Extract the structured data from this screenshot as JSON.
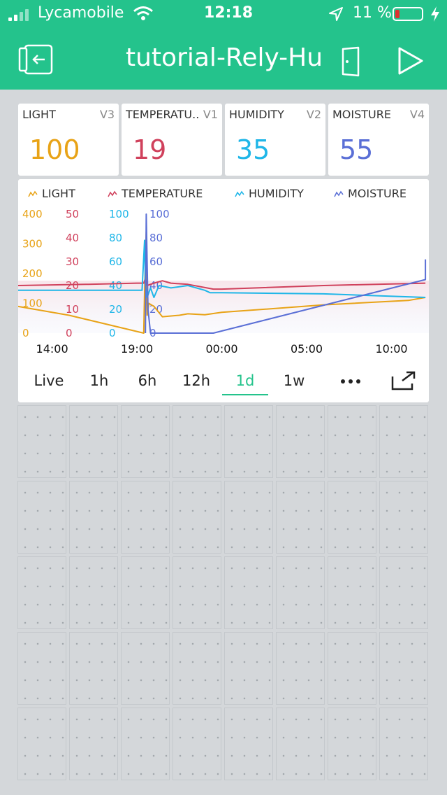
{
  "status_bar": {
    "carrier": "Lycamobile",
    "time": "12:18",
    "battery_percent": "11 %"
  },
  "header": {
    "title": "tutorial-Rely-Hu",
    "back_icon": "exit-icon",
    "device_icon": "door-icon",
    "play_icon": "play-icon"
  },
  "value_displays": [
    {
      "label": "LIGHT",
      "pin": "V3",
      "value": "100",
      "color": "#e8a317"
    },
    {
      "label": "TEMPERATU...",
      "pin": "V1",
      "value": "19",
      "color": "#d0415c"
    },
    {
      "label": "HUMIDITY",
      "pin": "V2",
      "value": "35",
      "color": "#1fb6e8"
    },
    {
      "label": "MOISTURE",
      "pin": "V4",
      "value": "55",
      "color": "#5a6fd6"
    }
  ],
  "chart_data": {
    "type": "line",
    "legend": [
      "LIGHT",
      "TEMPERATURE",
      "HUMIDITY",
      "MOISTURE"
    ],
    "x_ticks": [
      "14:00",
      "19:00",
      "00:00",
      "05:00",
      "10:00"
    ],
    "y_axes": [
      {
        "series": "LIGHT",
        "ticks": [
          "400",
          "300",
          "200",
          "100",
          "0"
        ],
        "ylim": [
          0,
          400
        ]
      },
      {
        "series": "TEMPERATURE",
        "ticks": [
          "50",
          "40",
          "30",
          "20",
          "10",
          "0"
        ],
        "ylim": [
          0,
          50
        ]
      },
      {
        "series": "HUMIDITY",
        "ticks": [
          "100",
          "80",
          "60",
          "40",
          "20",
          "0"
        ],
        "ylim": [
          0,
          100
        ]
      },
      {
        "series": "MOISTURE",
        "ticks": [
          "100",
          "80",
          "60",
          "40",
          "20",
          "0"
        ],
        "ylim": [
          0,
          100
        ]
      }
    ],
    "series": [
      {
        "name": "LIGHT",
        "color": "#e8a317",
        "x": [
          12.0,
          15.0,
          19.4,
          19.45,
          19.55,
          19.6,
          19.7,
          20.0,
          20.5,
          21.5,
          22.0,
          23.0,
          24.0,
          26.0,
          30.0,
          35.0,
          36.0
        ],
        "y": [
          90,
          60,
          0,
          140,
          340,
          60,
          100,
          90,
          55,
          60,
          65,
          62,
          70,
          78,
          95,
          110,
          120
        ]
      },
      {
        "name": "TEMPERATURE",
        "color": "#d0415c",
        "x": [
          12.0,
          16.0,
          19.0,
          19.4,
          19.5,
          19.6,
          20.0,
          20.5,
          21.0,
          22.0,
          23.5,
          24.0,
          30.0,
          36.0
        ],
        "y": [
          20,
          20.5,
          21,
          21,
          23,
          20,
          21,
          22,
          21,
          20.5,
          18.5,
          18.5,
          20,
          21
        ]
      },
      {
        "name": "HUMIDITY",
        "color": "#1fb6e8",
        "x": [
          12.0,
          17.0,
          19.3,
          19.45,
          19.5,
          19.6,
          19.8,
          20.0,
          20.3,
          21.0,
          22.0,
          23.0,
          23.3,
          24.0,
          30.0,
          36.0
        ],
        "y": [
          36,
          36,
          36,
          78,
          40,
          30,
          38,
          30,
          40,
          38,
          40,
          36,
          34,
          34,
          33,
          30
        ]
      },
      {
        "name": "MOISTURE",
        "color": "#5a6fd6",
        "x": [
          19.5,
          19.55,
          19.65,
          19.8,
          20.0,
          23.5,
          36.0,
          36.0
        ],
        "y": [
          0,
          100,
          20,
          0,
          0,
          0,
          45,
          62
        ]
      }
    ],
    "xlim": [
      12.0,
      36.2
    ],
    "grid": false,
    "legend_position": "top"
  },
  "time_ranges": {
    "options": [
      "Live",
      "1h",
      "6h",
      "12h",
      "1d",
      "1w"
    ],
    "active": "1d",
    "more_icon": "more-icon",
    "expand_icon": "expand-icon"
  }
}
